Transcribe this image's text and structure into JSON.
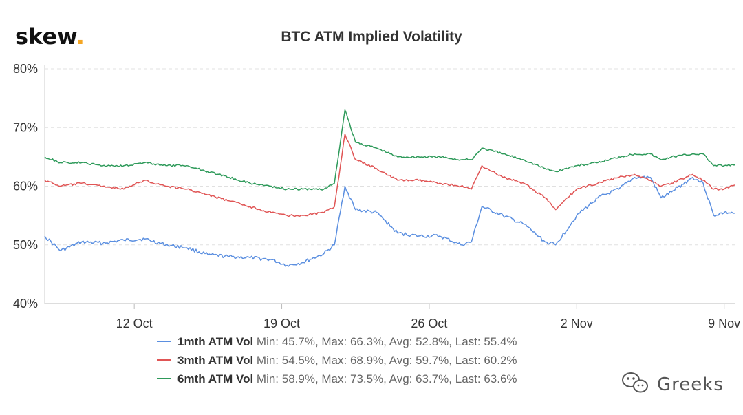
{
  "brand": {
    "logo_text": "skew",
    "logo_dot": ".",
    "dot_color": "#f5a623"
  },
  "watermark": {
    "icon": "wechat-icon",
    "text": "Greeks"
  },
  "chart_data": {
    "type": "line",
    "title": "BTC ATM Implied Volatility",
    "y_unit": "%",
    "ylim": [
      40,
      80
    ],
    "y_ticks": [
      40,
      50,
      60,
      70,
      80
    ],
    "y_tick_labels": [
      "40%",
      "50%",
      "60%",
      "70%",
      "80%"
    ],
    "x_range": [
      "2020-10-07T18:00",
      "2020-11-09T12:00"
    ],
    "x_ticks": [
      "2020-10-12",
      "2020-10-19",
      "2020-10-26",
      "2020-11-02",
      "2020-11-09"
    ],
    "x_tick_labels": [
      "12 Oct",
      "19 Oct",
      "26 Oct",
      "2 Nov",
      "9 Nov"
    ],
    "grid": {
      "y": true,
      "x": false
    },
    "legend_position": "bottom",
    "x": [
      "2020-10-07T18:00",
      "2020-10-08T12:00",
      "2020-10-09T12:00",
      "2020-10-10T12:00",
      "2020-10-11T12:00",
      "2020-10-12T12:00",
      "2020-10-13T12:00",
      "2020-10-14T12:00",
      "2020-10-15T12:00",
      "2020-10-16T12:00",
      "2020-10-17T12:00",
      "2020-10-18T12:00",
      "2020-10-19T06:00",
      "2020-10-20T00:00",
      "2020-10-21T00:00",
      "2020-10-21T12:00",
      "2020-10-22T00:00",
      "2020-10-22T12:00",
      "2020-10-23T12:00",
      "2020-10-24T12:00",
      "2020-10-25T12:00",
      "2020-10-26T12:00",
      "2020-10-27T12:00",
      "2020-10-28T00:00",
      "2020-10-28T12:00",
      "2020-10-29T12:00",
      "2020-10-30T12:00",
      "2020-10-31T12:00",
      "2020-11-01T00:00",
      "2020-11-02T00:00",
      "2020-11-03T00:00",
      "2020-11-04T00:00",
      "2020-11-04T18:00",
      "2020-11-05T12:00",
      "2020-11-06T00:00",
      "2020-11-06T12:00",
      "2020-11-07T12:00",
      "2020-11-08T00:00",
      "2020-11-08T12:00",
      "2020-11-09T00:00",
      "2020-11-09T12:00"
    ],
    "series": [
      {
        "name": "1mth ATM Vol",
        "color": "#5b8fe0",
        "stats": "Min: 45.7%, Max: 66.3%, Avg: 52.8%, Last: 55.4%",
        "values": [
          51.5,
          49.0,
          50.5,
          50.3,
          50.8,
          51.0,
          50.0,
          49.5,
          48.3,
          48.0,
          47.8,
          47.5,
          46.5,
          47.0,
          48.5,
          50.0,
          60.0,
          56.0,
          55.5,
          52.0,
          51.5,
          51.5,
          50.0,
          50.5,
          56.5,
          55.0,
          53.5,
          50.5,
          50.0,
          55.0,
          58.0,
          59.5,
          61.5,
          61.5,
          58.0,
          59.0,
          61.5,
          60.5,
          55.0,
          55.5,
          55.4
        ]
      },
      {
        "name": "3mth ATM Vol",
        "color": "#e05555",
        "stats": "Min: 54.5%, Max: 68.9%, Avg: 59.7%, Last: 60.2%",
        "values": [
          61.0,
          60.0,
          60.5,
          60.0,
          59.5,
          61.0,
          60.0,
          59.5,
          58.5,
          57.5,
          56.5,
          55.5,
          55.0,
          55.0,
          55.5,
          56.5,
          68.9,
          64.5,
          63.0,
          61.0,
          61.0,
          60.5,
          60.0,
          59.5,
          63.5,
          61.5,
          60.5,
          58.0,
          56.0,
          59.5,
          60.5,
          61.5,
          62.0,
          61.0,
          60.0,
          60.5,
          62.0,
          61.0,
          59.5,
          59.5,
          60.2
        ]
      },
      {
        "name": "6mth ATM Vol",
        "color": "#2e9a5a",
        "stats": "Min: 58.9%, Max: 73.5%, Avg: 63.7%, Last: 63.6%",
        "values": [
          65.0,
          64.0,
          64.0,
          63.5,
          63.5,
          64.0,
          63.5,
          63.5,
          62.5,
          61.5,
          60.5,
          60.0,
          59.5,
          59.5,
          59.5,
          60.5,
          73.0,
          67.5,
          66.5,
          65.0,
          65.0,
          65.0,
          64.5,
          64.5,
          66.5,
          65.5,
          64.5,
          63.0,
          62.5,
          63.5,
          64.0,
          65.0,
          65.5,
          65.5,
          64.5,
          65.0,
          65.5,
          65.5,
          63.5,
          63.5,
          63.6
        ]
      }
    ]
  }
}
